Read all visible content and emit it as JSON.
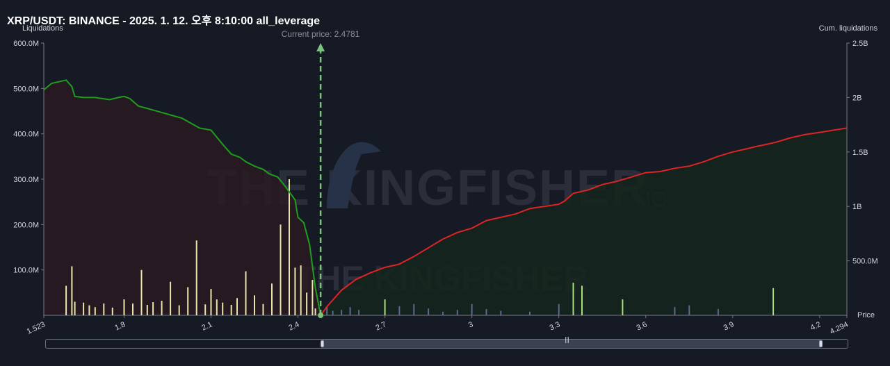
{
  "title": "XRP/USDT: BINANCE - 2025. 1. 12. 오후 8:10:00 all_leverage",
  "watermark": {
    "brand": "THE KINGFISHER",
    "suffix": ".IO"
  },
  "colors": {
    "background": "#161a25",
    "short_cum_line": "#1f9d1f",
    "short_cum_fill": "#2a1a22",
    "long_cum_line": "#e02424",
    "long_cum_fill": "#14261c",
    "bar_below_price": "#e8e6a8",
    "bar_above_price_high": "#a8e07a",
    "bar_above_price_low": "#5c6a8c",
    "current_price": "#7bc47b"
  },
  "chart_data": {
    "type": "area",
    "left_axis": {
      "label": "Liquidations",
      "ticks": [
        "100.0M",
        "200.0M",
        "300.0M",
        "400.0M",
        "500.0M",
        "600.0M"
      ],
      "ylim": [
        0,
        600000000
      ]
    },
    "right_axis": {
      "label": "Cum. liquidations",
      "ticks": [
        "500.0M",
        "1B",
        "1.5B",
        "2B",
        "2.5B"
      ],
      "ylim": [
        0,
        2500000000
      ]
    },
    "x_axis": {
      "label": "Price",
      "ticks": [
        "1.523",
        "1.8",
        "2.1",
        "2.4",
        "2.7",
        "3",
        "3.3",
        "3.6",
        "3.9",
        "4.2",
        "4.294"
      ],
      "xlim": [
        1.523,
        4.294
      ]
    },
    "current_price": {
      "label": "Current price: 2.4781",
      "value": 2.4781
    },
    "series": [
      {
        "name": "Cum. liquidations",
        "axis": "right",
        "x": [
          1.523,
          1.55,
          1.6,
          1.62,
          1.63,
          1.66,
          1.7,
          1.75,
          1.78,
          1.8,
          1.82,
          1.85,
          1.88,
          1.92,
          1.96,
          2.0,
          2.04,
          2.06,
          2.1,
          2.14,
          2.17,
          2.2,
          2.22,
          2.25,
          2.28,
          2.3,
          2.33,
          2.36,
          2.39,
          2.4,
          2.42,
          2.44,
          2.46,
          2.4781
        ],
        "y": [
          2070000000,
          2130000000,
          2160000000,
          2100000000,
          2010000000,
          2000000000,
          2000000000,
          1980000000,
          2000000000,
          2010000000,
          1990000000,
          1920000000,
          1900000000,
          1870000000,
          1840000000,
          1810000000,
          1750000000,
          1720000000,
          1700000000,
          1570000000,
          1480000000,
          1450000000,
          1410000000,
          1370000000,
          1340000000,
          1300000000,
          1270000000,
          1170000000,
          1060000000,
          900000000,
          850000000,
          650000000,
          250000000,
          0
        ]
      },
      {
        "name": "Cum. liquidations",
        "axis": "right",
        "x": [
          2.4781,
          2.5,
          2.55,
          2.6,
          2.65,
          2.7,
          2.75,
          2.8,
          2.85,
          2.9,
          2.95,
          3.0,
          3.05,
          3.1,
          3.15,
          3.2,
          3.25,
          3.3,
          3.32,
          3.35,
          3.4,
          3.45,
          3.5,
          3.55,
          3.6,
          3.65,
          3.7,
          3.75,
          3.8,
          3.85,
          3.9,
          3.95,
          3.98,
          4.0,
          4.05,
          4.1,
          4.15,
          4.2,
          4.294
        ],
        "y": [
          0,
          80000000,
          230000000,
          330000000,
          390000000,
          440000000,
          470000000,
          540000000,
          620000000,
          700000000,
          760000000,
          800000000,
          870000000,
          900000000,
          930000000,
          980000000,
          1000000000,
          1020000000,
          1050000000,
          1120000000,
          1150000000,
          1200000000,
          1230000000,
          1270000000,
          1310000000,
          1320000000,
          1350000000,
          1370000000,
          1410000000,
          1460000000,
          1500000000,
          1530000000,
          1550000000,
          1560000000,
          1590000000,
          1630000000,
          1660000000,
          1680000000,
          1720000000
        ]
      },
      {
        "name": "Liquidations",
        "axis": "left",
        "type": "bar",
        "x": [
          1.6,
          1.62,
          1.63,
          1.66,
          1.68,
          1.7,
          1.73,
          1.76,
          1.8,
          1.83,
          1.86,
          1.88,
          1.9,
          1.93,
          1.96,
          1.99,
          2.02,
          2.05,
          2.08,
          2.1,
          2.12,
          2.14,
          2.17,
          2.19,
          2.22,
          2.25,
          2.28,
          2.31,
          2.34,
          2.37,
          2.39,
          2.41,
          2.43,
          2.45,
          2.46,
          2.5,
          2.52,
          2.55,
          2.58,
          2.61,
          2.7,
          2.75,
          2.8,
          2.85,
          2.9,
          2.95,
          3.0,
          3.05,
          3.1,
          3.2,
          3.3,
          3.35,
          3.38,
          3.52,
          3.7,
          3.75,
          3.85,
          4.04
        ],
        "y": [
          65000000,
          108000000,
          30000000,
          28000000,
          22000000,
          18000000,
          26000000,
          17000000,
          35000000,
          26000000,
          100000000,
          23000000,
          29000000,
          32000000,
          74000000,
          22000000,
          62000000,
          165000000,
          24000000,
          58000000,
          35000000,
          28000000,
          23000000,
          38000000,
          97000000,
          44000000,
          25000000,
          70000000,
          200000000,
          300000000,
          105000000,
          110000000,
          50000000,
          78000000,
          15000000,
          20000000,
          10000000,
          12000000,
          18000000,
          12000000,
          35000000,
          20000000,
          25000000,
          15000000,
          8000000,
          12000000,
          25000000,
          14000000,
          10000000,
          8000000,
          25000000,
          72000000,
          65000000,
          35000000,
          18000000,
          22000000,
          14000000,
          60000000
        ]
      }
    ]
  }
}
